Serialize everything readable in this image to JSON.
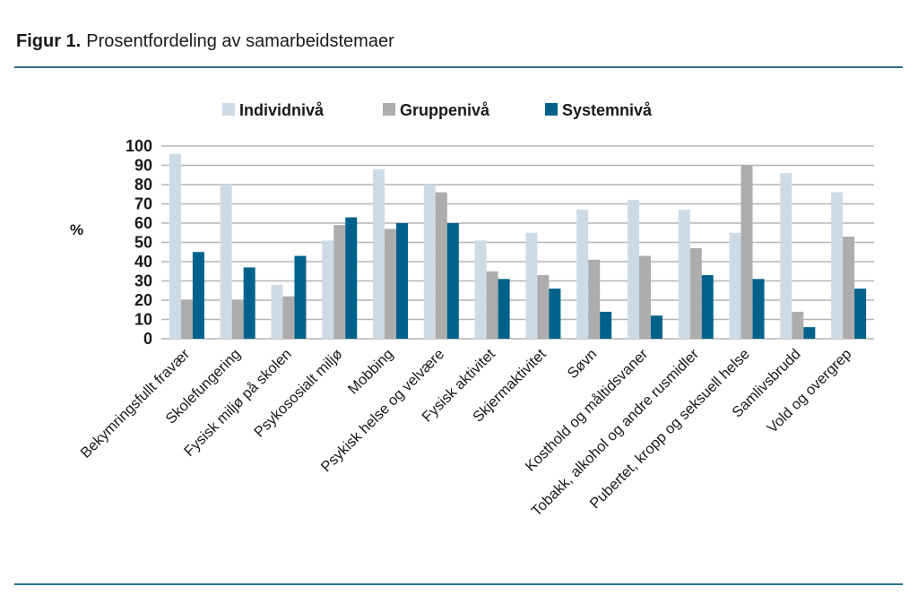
{
  "title_prefix": "Figur 1.",
  "title_text": "Prosentfordeling av samarbeidstemaer",
  "chart_data": {
    "type": "bar",
    "title": "Figur 1. Prosentfordeling av samarbeidstemaer",
    "xlabel": "",
    "ylabel": "%",
    "ylim": [
      0,
      100
    ],
    "yticks": [
      0,
      10,
      20,
      30,
      40,
      50,
      60,
      70,
      80,
      90,
      100
    ],
    "grid": true,
    "legend_placement": "top",
    "categories": [
      "Bekymringsfullt fravær",
      "Skolefungering",
      "Fysisk miljø på skolen",
      "Psykososialt miljø",
      "Mobbing",
      "Psykisk helse og velvære",
      "Fysisk aktivitet",
      "Skjermaktivitet",
      "Søvn",
      "Kosthold og måltidsvaner",
      "Tobakk, alkohol og andre rusmidler",
      "Pubertet, kropp og seksuell helse",
      "Samlivsbrudd",
      "Vold og overgrep"
    ],
    "series": [
      {
        "name": "Individnivå",
        "color": "#cddbe7",
        "values": [
          96,
          80,
          28,
          51,
          88,
          80,
          51,
          55,
          67,
          72,
          67,
          55,
          86,
          76
        ]
      },
      {
        "name": "Gruppenivå",
        "color": "#adadad",
        "values": [
          20,
          20,
          22,
          59,
          57,
          76,
          35,
          33,
          41,
          43,
          47,
          90,
          14,
          53
        ]
      },
      {
        "name": "Systemnivå",
        "color": "#00628a",
        "values": [
          45,
          37,
          43,
          63,
          60,
          60,
          31,
          26,
          14,
          12,
          33,
          31,
          6,
          26
        ]
      }
    ]
  },
  "colors": {
    "rule": "#2e6f8e",
    "grid": "#b5b5b5"
  }
}
